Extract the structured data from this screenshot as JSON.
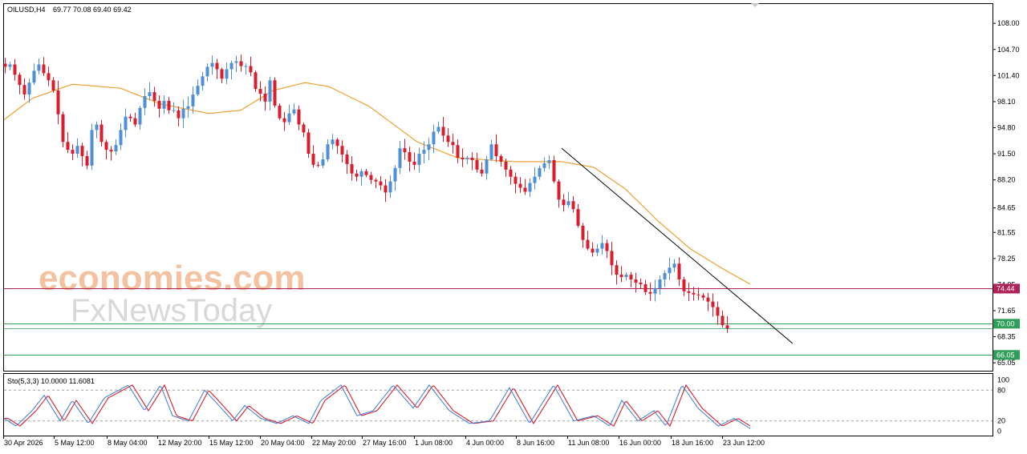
{
  "header": {
    "symbol": "OILUSD,H4",
    "ohlc": "69.77 70.08 69.40 69.42"
  },
  "watermark": {
    "brand_1": "economies.com",
    "brand_2": "FxNewsToday"
  },
  "indicator": {
    "label": "Sto(5,3,3) 10.0000 11.6081",
    "levels": [
      "100",
      "80",
      "20",
      "0"
    ]
  },
  "colors": {
    "bull": "#4e8fd6",
    "bear": "#d81e2c",
    "ma": "#f0a030",
    "trendline": "#000000",
    "resistance": "#b0235a",
    "support": "#2e9e58",
    "stoch_main": "#3a7bd5",
    "stoch_signal": "#d81e2c"
  },
  "chart_data": {
    "type": "candlestick",
    "timeframe": "H4",
    "ylim": [
      64.0,
      110.5
    ],
    "y_ticks": [
      "108.00",
      "104.70",
      "101.40",
      "98.10",
      "94.80",
      "91.50",
      "88.20",
      "84.65",
      "81.55",
      "78.25",
      "74.95",
      "71.65",
      "68.35",
      "65.05"
    ],
    "x_ticks": [
      "30 Apr 2026",
      "5 May 12:00",
      "8 May 04:00",
      "12 May 20:00",
      "15 May 12:00",
      "20 May 04:00",
      "22 May 20:00",
      "27 May 16:00",
      "1 Jun 08:00",
      "4 Jun 00:00",
      "8 Jun 16:00",
      "11 Jun 08:00",
      "16 Jun 00:00",
      "18 Jun 16:00",
      "23 Jun 12:00"
    ],
    "close_path": [
      102.5,
      102.8,
      101.5,
      100.2,
      99.0,
      100.5,
      102.0,
      102.8,
      101.7,
      100.8,
      99.5,
      96.5,
      93.0,
      92.0,
      91.5,
      92.5,
      91.2,
      90.0,
      94.5,
      95.2,
      93.0,
      92.0,
      91.8,
      92.6,
      94.5,
      96.2,
      96.0,
      95.2,
      97.3,
      98.8,
      99.3,
      98.2,
      97.2,
      98.2,
      97.0,
      97.0,
      96.0,
      97.2,
      97.5,
      99.0,
      100.1,
      101.3,
      102.5,
      103.0,
      102.2,
      101.0,
      102.2,
      103.0,
      103.2,
      102.6,
      102.6,
      101.8,
      99.7,
      99.1,
      98.1,
      100.8,
      97.6,
      96.0,
      95.5,
      96.6,
      97.1,
      95.2,
      94.2,
      91.5,
      90.1,
      90.0,
      90.8,
      92.7,
      93.3,
      92.5,
      91.4,
      90.2,
      89.0,
      88.6,
      89.3,
      88.8,
      88.2,
      88.0,
      87.5,
      86.6,
      88.0,
      89.7,
      92.2,
      91.7,
      90.5,
      90.1,
      91.5,
      92.0,
      92.7,
      94.3,
      94.9,
      93.8,
      93.0,
      92.6,
      91.0,
      90.8,
      91.0,
      90.7,
      89.5,
      89.0,
      90.8,
      92.7,
      91.2,
      90.5,
      89.5,
      88.6,
      87.7,
      87.2,
      86.7,
      87.8,
      88.6,
      89.7,
      90.3,
      90.7,
      88.0,
      85.7,
      85.0,
      85.5,
      84.5,
      82.4,
      80.6,
      79.5,
      79.0,
      79.5,
      80.2,
      79.2,
      77.4,
      76.2,
      75.9,
      76.2,
      75.6,
      75.2,
      75.0,
      74.0,
      73.8,
      74.5,
      75.6,
      76.4,
      77.1,
      77.6,
      75.6,
      74.1,
      73.9,
      73.7,
      73.6,
      73.3,
      72.8,
      72.1,
      71.0,
      69.8,
      69.42
    ],
    "moving_average": {
      "anchors_x": [
        5,
        40,
        90,
        150,
        200,
        260,
        300,
        340,
        380,
        410,
        460,
        520,
        570,
        640,
        700,
        740,
        780,
        820,
        860,
        900,
        935
      ],
      "anchors_price": [
        95.8,
        98.5,
        100.3,
        99.8,
        97.8,
        96.6,
        97.0,
        99.5,
        100.5,
        100.0,
        97.5,
        93.0,
        91.0,
        90.5,
        90.5,
        89.8,
        87.0,
        83.0,
        79.5,
        77.0,
        75.0
      ]
    },
    "trendline": {
      "from": [
        700,
        92.2
      ],
      "to": [
        988,
        67.5
      ]
    },
    "horizontal_levels": [
      {
        "value": 74.44,
        "label": "74.44"
      },
      {
        "value": 70.0,
        "label": "70.00"
      },
      {
        "value": 66.05,
        "label": "66.05"
      }
    ],
    "current_price": 69.42,
    "stochastic": {
      "anchors_x": [
        5,
        20,
        40,
        55,
        75,
        90,
        110,
        130,
        160,
        180,
        200,
        215,
        235,
        255,
        270,
        290,
        305,
        325,
        345,
        365,
        385,
        400,
        425,
        445,
        465,
        490,
        515,
        535,
        560,
        585,
        610,
        635,
        660,
        690,
        715,
        740,
        760,
        775,
        795,
        815,
        830,
        850,
        870,
        895,
        915,
        935
      ],
      "anchors_k": [
        25,
        10,
        40,
        70,
        20,
        60,
        15,
        65,
        90,
        40,
        90,
        30,
        20,
        80,
        55,
        20,
        50,
        25,
        15,
        30,
        15,
        60,
        90,
        30,
        40,
        90,
        45,
        90,
        40,
        15,
        20,
        85,
        15,
        90,
        20,
        30,
        10,
        60,
        20,
        40,
        10,
        90,
        45,
        10,
        25,
        5
      ]
    }
  }
}
